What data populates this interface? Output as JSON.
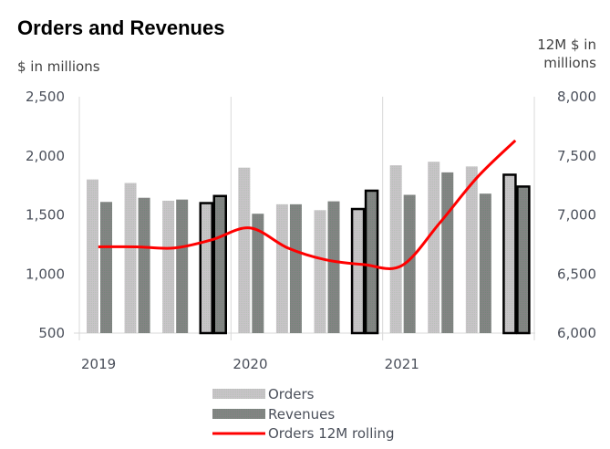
{
  "chart_data": {
    "type": "bar",
    "title": "Orders and Revenues",
    "ylabel": "$ in millions",
    "y2label_line1": "12M $ in",
    "y2label_line2": "millions",
    "ylim": [
      500,
      2500
    ],
    "y2lim": [
      6000,
      8000
    ],
    "yticks": [
      "500",
      "1,000",
      "1,500",
      "2,000",
      "2,500"
    ],
    "y2ticks": [
      "6,000",
      "6,500",
      "7,000",
      "7,500",
      "8,000"
    ],
    "ytick_values": [
      500,
      1000,
      1500,
      2000,
      2500
    ],
    "y2tick_values": [
      6000,
      6500,
      7000,
      7500,
      8000
    ],
    "year_labels": [
      "2019",
      "2020",
      "2021"
    ],
    "categories": [
      "Q1 2019",
      "Q2 2019",
      "Q3 2019",
      "Q4 2019",
      "Q1 2020",
      "Q2 2020",
      "Q3 2020",
      "Q4 2020",
      "Q1 2021",
      "Q2 2021",
      "Q3 2021",
      "Q4 2021"
    ],
    "highlighted_quarters": [
      "Q4 2019",
      "Q4 2020",
      "Q4 2021"
    ],
    "grid": "vertical year separators",
    "legend_position": "bottom",
    "series": [
      {
        "name": "Orders",
        "type": "bar",
        "axis": "left",
        "color": "#c4c0c4",
        "values": [
          1800,
          1770,
          1620,
          1600,
          1900,
          1590,
          1540,
          1550,
          1920,
          1950,
          1910,
          1840
        ]
      },
      {
        "name": "Revenues",
        "type": "bar",
        "axis": "left",
        "color": "#7f8580",
        "values": [
          1610,
          1645,
          1630,
          1660,
          1510,
          1590,
          1615,
          1705,
          1670,
          1860,
          1680,
          1740
        ]
      },
      {
        "name": "Orders 12M rolling",
        "type": "line",
        "axis": "right",
        "color": "#ff0000",
        "values": [
          6730,
          6730,
          6720,
          6790,
          6890,
          6720,
          6620,
          6580,
          6570,
          6930,
          7320,
          7630
        ]
      }
    ]
  }
}
